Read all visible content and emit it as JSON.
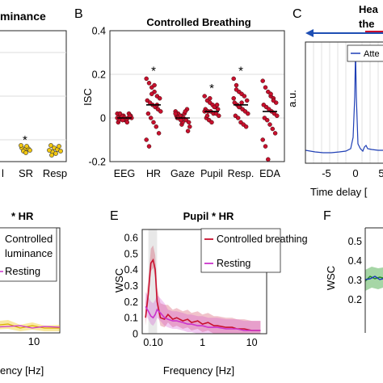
{
  "panels": {
    "A": {
      "title_fragment": "minance",
      "cat_frag": "l",
      "categories": [
        "SR",
        "Resp"
      ],
      "star": "*"
    },
    "B": {
      "letter": "B"
    },
    "C": {
      "letter": "C",
      "title_line1": "Hea",
      "title_line2": "the",
      "ylabel": "a.u.",
      "xlabel": "Time delay [",
      "legend": "Atte",
      "xticks": [
        "-5",
        "0",
        "5"
      ]
    },
    "D": {
      "title": "* HR",
      "legend": [
        "Controlled",
        "luminance",
        "Resting"
      ],
      "xticks": [
        "10"
      ],
      "xlabel": "ency [Hz]"
    },
    "E": {
      "letter": "E"
    },
    "F": {
      "letter": "F",
      "ylabel": "WSC",
      "yticks": [
        "0.5",
        "0.4",
        "0.3",
        "0.2"
      ]
    }
  },
  "chart_data": [
    {
      "panel": "B",
      "type": "scatter",
      "title": "Controlled Breathing",
      "ylabel": "ISC",
      "xlabel": "",
      "categories": [
        "EEG",
        "HR",
        "Gaze",
        "Pupil",
        "Resp.",
        "EDA"
      ],
      "ylim": [
        -0.2,
        0.4
      ],
      "yticks": [
        "0.4",
        "0.2",
        "0",
        "-0.2"
      ],
      "grid": true,
      "point_color": "#c8102e",
      "significance": [
        false,
        true,
        false,
        true,
        true,
        false
      ],
      "star": "*",
      "series": [
        {
          "category": "EEG",
          "values": [
            0.02,
            0.01,
            0.0,
            -0.01,
            0.0,
            0.01,
            -0.02,
            0.0,
            0.01,
            -0.01,
            0.02,
            0.0,
            -0.01,
            0.01,
            0.0,
            -0.02,
            0.01,
            0.0,
            0.02,
            -0.01
          ]
        },
        {
          "category": "HR",
          "values": [
            0.18,
            0.16,
            0.14,
            0.12,
            0.1,
            0.09,
            0.08,
            0.07,
            0.06,
            0.05,
            0.04,
            0.03,
            0.02,
            0.0,
            -0.02,
            -0.04,
            -0.07,
            -0.1,
            -0.13,
            0.11,
            0.15,
            0.06
          ]
        },
        {
          "category": "Gaze",
          "values": [
            0.03,
            0.02,
            0.01,
            0.0,
            -0.01,
            -0.02,
            0.01,
            0.0,
            -0.03,
            0.02,
            0.04,
            -0.04,
            0.0,
            0.01,
            -0.02,
            0.03,
            -0.06,
            0.02,
            0.0,
            -0.01
          ]
        },
        {
          "category": "Pupil",
          "values": [
            0.1,
            0.08,
            0.07,
            0.06,
            0.05,
            0.04,
            0.04,
            0.03,
            0.03,
            0.02,
            0.02,
            0.01,
            0.0,
            -0.01,
            -0.02,
            0.05,
            0.06,
            0.03,
            0.01,
            0.09
          ]
        },
        {
          "category": "Resp.",
          "values": [
            0.18,
            0.15,
            0.12,
            0.11,
            0.1,
            0.08,
            0.07,
            0.06,
            0.05,
            0.04,
            0.03,
            0.02,
            0.01,
            0.0,
            -0.02,
            -0.03,
            -0.04,
            0.09,
            0.13,
            0.05,
            0.07
          ]
        },
        {
          "category": "EDA",
          "values": [
            0.17,
            0.14,
            0.12,
            0.1,
            0.09,
            0.07,
            0.06,
            0.05,
            0.04,
            0.03,
            0.02,
            0.01,
            0.0,
            -0.01,
            -0.03,
            -0.05,
            -0.07,
            -0.1,
            -0.13,
            -0.19,
            0.11,
            0.08
          ]
        }
      ],
      "medians": [
        0.0,
        0.06,
        0.0,
        0.03,
        0.06,
        0.03
      ]
    },
    {
      "panel": "E",
      "type": "line",
      "title": "Pupil * HR",
      "xlabel": "Frequency [Hz]",
      "ylabel": "WSC",
      "xscale": "log",
      "xlim": [
        0.06,
        20
      ],
      "ylim": [
        0,
        0.65
      ],
      "yticks": [
        "0.6",
        "0.5",
        "0.4",
        "0.3",
        "0.2",
        "0.1",
        "0"
      ],
      "xticks": [
        "0.10",
        "1",
        "10"
      ],
      "legend": "top-right",
      "series": [
        {
          "name": "Controlled breathing",
          "color": "#c8102e",
          "x": [
            0.07,
            0.08,
            0.09,
            0.1,
            0.11,
            0.12,
            0.14,
            0.17,
            0.2,
            0.25,
            0.3,
            0.4,
            0.5,
            0.6,
            0.8,
            1,
            1.3,
            1.7,
            2,
            3,
            4,
            5,
            7,
            10,
            15
          ],
          "y": [
            0.1,
            0.25,
            0.44,
            0.46,
            0.4,
            0.2,
            0.1,
            0.09,
            0.12,
            0.09,
            0.1,
            0.08,
            0.09,
            0.07,
            0.08,
            0.06,
            0.07,
            0.05,
            0.05,
            0.04,
            0.04,
            0.03,
            0.03,
            0.02,
            0.02
          ]
        },
        {
          "name": "Resting",
          "color": "#cc33cc",
          "x": [
            0.07,
            0.08,
            0.09,
            0.1,
            0.11,
            0.12,
            0.14,
            0.17,
            0.2,
            0.25,
            0.3,
            0.4,
            0.5,
            0.6,
            0.8,
            1,
            1.3,
            1.7,
            2,
            3,
            4,
            5,
            7,
            10,
            15
          ],
          "y": [
            0.17,
            0.14,
            0.11,
            0.1,
            0.12,
            0.15,
            0.13,
            0.1,
            0.09,
            0.08,
            0.08,
            0.07,
            0.06,
            0.06,
            0.05,
            0.05,
            0.04,
            0.04,
            0.04,
            0.03,
            0.03,
            0.03,
            0.02,
            0.02,
            0.02
          ]
        }
      ]
    }
  ]
}
